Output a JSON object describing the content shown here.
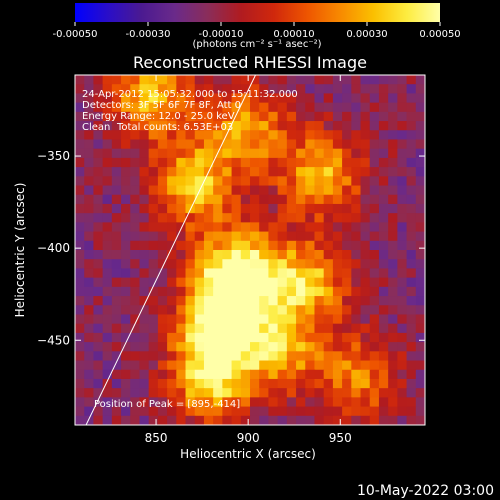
{
  "colorbar": {
    "tick_labels": [
      "-0.00050",
      "-0.00030",
      "-0.00010",
      "0.00010",
      "0.00030",
      "0.00050"
    ],
    "tick_values": [
      -0.0005,
      -0.0003,
      -0.0001,
      0.0001,
      0.0003,
      0.0005
    ],
    "range": [
      -0.0005,
      0.0005
    ],
    "units": "(photons cm⁻² s⁻¹ asec⁻²)",
    "colormap": [
      "#0000ff",
      "#2a0ec8",
      "#4b1a91",
      "#6a2a8a",
      "#8a2d5a",
      "#b01b20",
      "#d0280c",
      "#ee5500",
      "#f88a00",
      "#fbc000",
      "#fdec40",
      "#ffffa8"
    ]
  },
  "chart_data": {
    "type": "heatmap",
    "title": "Reconstructed RHESSI Image",
    "xlabel": "Heliocentric X (arcsec)",
    "ylabel": "Heliocentric Y (arcsec)",
    "xlim": [
      806,
      996
    ],
    "ylim": [
      -496,
      -306
    ],
    "x_ticks": [
      850,
      900,
      950
    ],
    "y_ticks": [
      -350,
      -400,
      -450
    ],
    "annotations": [
      "24-Apr-2012 15:05:32.000 to 15:11:32.000",
      "Detectors: 3F 5F 6F 7F 8F, Att 0",
      "Energy Range: 12.0 - 25.0 keV",
      "Clean",
      "Total counts: 6.53E+03"
    ],
    "peak_label": "Position of Peak = [895,-414]",
    "peak": [
      895,
      -414
    ],
    "limb_line": [
      [
        812,
        -496
      ],
      [
        904,
        -306
      ]
    ],
    "bright_regions": [
      {
        "x": 895,
        "y": -413,
        "value": 0.0005
      },
      {
        "x": 885,
        "y": -440,
        "value": 0.00042
      },
      {
        "x": 880,
        "y": -470,
        "value": 0.00035
      },
      {
        "x": 870,
        "y": -365,
        "value": 0.0003
      },
      {
        "x": 848,
        "y": -318,
        "value": 0.00028
      },
      {
        "x": 932,
        "y": -418,
        "value": 0.00027
      },
      {
        "x": 940,
        "y": -360,
        "value": 0.00025
      },
      {
        "x": 918,
        "y": -455,
        "value": 0.00022
      },
      {
        "x": 900,
        "y": -335,
        "value": 0.0002
      },
      {
        "x": 960,
        "y": -470,
        "value": 0.00015
      }
    ]
  },
  "footer": {
    "timestamp": "10-May-2022 03:00"
  }
}
